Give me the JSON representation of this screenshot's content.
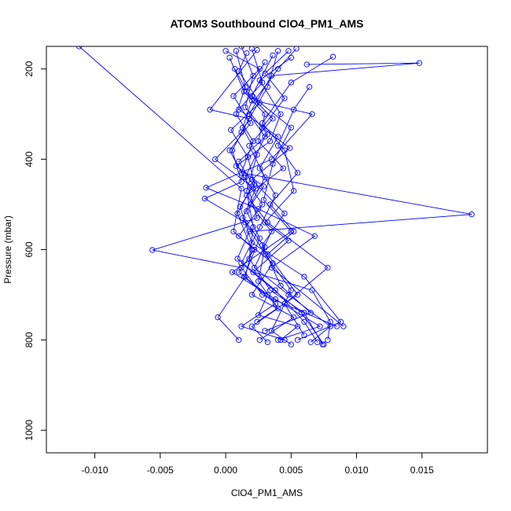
{
  "chart_data": {
    "type": "line",
    "title": "ATOM3 Southbound ClO4_PM1_AMS",
    "xlabel": "ClO4_PM1_AMS",
    "ylabel": "Pressure (mbar)",
    "xlim": [
      -0.0137,
      0.02
    ],
    "ylim": [
      1050,
      150
    ],
    "x_ticks": [
      -0.01,
      -0.005,
      0.0,
      0.005,
      0.01,
      0.015
    ],
    "x_tick_labels": [
      "-0.010",
      "-0.005",
      "0.000",
      "0.005",
      "0.010",
      "0.015"
    ],
    "y_ticks": [
      200,
      400,
      600,
      800,
      1000
    ],
    "y_tick_labels": [
      "200",
      "400",
      "600",
      "800",
      "1000"
    ],
    "y_reversed": true,
    "grid": false,
    "marker": "open-circle",
    "color": "#0000ff",
    "series": [
      {
        "points": [
          [
            -0.0112,
            150
          ],
          [
            0.0012,
            465
          ],
          [
            0.0006,
            560
          ],
          [
            0.0022,
            600
          ],
          [
            0.001,
            650
          ],
          [
            0.0032,
            700
          ],
          [
            0.0025,
            745
          ],
          [
            0.0055,
            770
          ],
          [
            0.0042,
            800
          ]
        ]
      },
      {
        "points": [
          [
            0.0008,
            160
          ],
          [
            0.0015,
            240
          ],
          [
            0.0008,
            300
          ],
          [
            0.0021,
            360
          ],
          [
            0.0012,
            430
          ],
          [
            0.0188,
            522
          ],
          [
            0.0018,
            560
          ],
          [
            0.0009,
            620
          ],
          [
            0.0038,
            690
          ],
          [
            0.006,
            760
          ],
          [
            0.007,
            805
          ]
        ]
      },
      {
        "points": [
          [
            0.0062,
            190
          ],
          [
            0.0148,
            187
          ],
          [
            0.0035,
            215
          ],
          [
            0.0018,
            300
          ],
          [
            0.003,
            350
          ],
          [
            0.0015,
            440
          ],
          [
            0.0024,
            530
          ],
          [
            -0.0056,
            601
          ],
          [
            0.0012,
            640
          ],
          [
            0.0028,
            700
          ],
          [
            0.0085,
            770
          ]
        ]
      },
      {
        "points": [
          [
            0.0082,
            173
          ],
          [
            0.005,
            230
          ],
          [
            0.0028,
            320
          ],
          [
            0.0045,
            380
          ],
          [
            0.0052,
            470
          ],
          [
            0.003,
            540
          ],
          [
            0.0048,
            580
          ],
          [
            0.0021,
            650
          ],
          [
            0.0066,
            690
          ],
          [
            0.008,
            760
          ],
          [
            0.0078,
            800
          ]
        ]
      },
      {
        "points": [
          [
            0.004,
            160
          ],
          [
            0.0032,
            240
          ],
          [
            0.0012,
            340
          ],
          [
            -0.0008,
            400
          ],
          [
            0.002,
            460
          ],
          [
            0.0009,
            520
          ],
          [
            0.002,
            600
          ],
          [
            0.0015,
            660
          ],
          [
            -0.0006,
            750
          ],
          [
            0.001,
            800
          ]
        ]
      },
      {
        "points": [
          [
            0.0054,
            155
          ],
          [
            0.004,
            200
          ],
          [
            0.0022,
            270
          ],
          [
            0.0066,
            300
          ],
          [
            0.0035,
            400
          ],
          [
            -0.0015,
            463
          ],
          [
            0.0025,
            510
          ],
          [
            0.0068,
            570
          ],
          [
            0.0035,
            640
          ],
          [
            0.009,
            770
          ]
        ]
      },
      {
        "points": [
          [
            0.0003,
            175
          ],
          [
            0.0014,
            250
          ],
          [
            0.003,
            300
          ],
          [
            0.0025,
            360
          ],
          [
            0.0044,
            420
          ],
          [
            0.0016,
            480
          ],
          [
            0.0032,
            540
          ],
          [
            0.0078,
            640
          ],
          [
            0.0045,
            720
          ],
          [
            0.006,
            790
          ]
        ]
      },
      {
        "points": [
          [
            0.0024,
            158
          ],
          [
            -0.0012,
            290
          ],
          [
            0.0018,
            310
          ],
          [
            0.0005,
            380
          ],
          [
            0.0012,
            450
          ],
          [
            -0.0016,
            487
          ],
          [
            0.0015,
            540
          ],
          [
            0.003,
            610
          ],
          [
            0.005,
            690
          ],
          [
            0.0035,
            780
          ],
          [
            0.005,
            810
          ]
        ]
      },
      {
        "points": [
          [
            0.0036,
            170
          ],
          [
            0.002,
            260
          ],
          [
            0.005,
            330
          ],
          [
            0.0036,
            410
          ],
          [
            0.0029,
            490
          ],
          [
            0.005,
            560
          ],
          [
            0.0005,
            650
          ],
          [
            0.0038,
            710
          ],
          [
            0.0072,
            770
          ],
          [
            0.004,
            800
          ]
        ]
      },
      {
        "points": [
          [
            0.002,
            155
          ],
          [
            0.0028,
            230
          ],
          [
            0.001,
            290
          ],
          [
            0.004,
            350
          ],
          [
            0.0026,
            420
          ],
          [
            0.0038,
            480
          ],
          [
            0.0026,
            550
          ],
          [
            0.0012,
            630
          ],
          [
            0.0058,
            740
          ],
          [
            0.0075,
            810
          ]
        ]
      },
      {
        "points": [
          [
            0.0016,
            165
          ],
          [
            0.001,
            205
          ],
          [
            0.0026,
            275
          ],
          [
            0.0004,
            335
          ],
          [
            0.0017,
            395
          ],
          [
            0.0022,
            455
          ],
          [
            0.0011,
            505
          ],
          [
            0.002,
            585
          ],
          [
            0.006,
            660
          ],
          [
            0.0088,
            760
          ],
          [
            0.0055,
            800
          ]
        ]
      },
      {
        "points": [
          [
            0.0048,
            160
          ],
          [
            0.003,
            210
          ],
          [
            0.0045,
            265
          ],
          [
            0.0028,
            330
          ],
          [
            0.0049,
            375
          ],
          [
            0.002,
            445
          ],
          [
            0.0045,
            520
          ],
          [
            0.0028,
            590
          ],
          [
            0.0042,
            680
          ],
          [
            0.0065,
            740
          ],
          [
            0.003,
            780
          ]
        ]
      },
      {
        "points": [
          [
            0.0012,
            150
          ],
          [
            0.0021,
            215
          ],
          [
            0.0015,
            285
          ],
          [
            0.0032,
            345
          ],
          [
            0.001,
            405
          ],
          [
            0.0023,
            465
          ],
          [
            0.0013,
            530
          ],
          [
            0.003,
            595
          ],
          [
            0.0025,
            670
          ],
          [
            0.004,
            730
          ],
          [
            0.002,
            770
          ],
          [
            0.0032,
            805
          ]
        ]
      },
      {
        "points": [
          [
            0.0064,
            240
          ],
          [
            0.0052,
            290
          ],
          [
            0.004,
            370
          ],
          [
            0.0055,
            430
          ],
          [
            0.0034,
            500
          ],
          [
            0.0052,
            560
          ],
          [
            0.0032,
            610
          ],
          [
            0.0055,
            700
          ],
          [
            0.0024,
            760
          ]
        ]
      },
      {
        "points": [
          [
            0.0007,
            200
          ],
          [
            0.002,
            270
          ],
          [
            0.0013,
            330
          ],
          [
            0.0024,
            390
          ],
          [
            0.0016,
            470
          ],
          [
            0.0021,
            550
          ],
          [
            0.0018,
            620
          ],
          [
            0.0034,
            690
          ],
          [
            0.006,
            740
          ],
          [
            0.0074,
            810
          ]
        ]
      },
      {
        "points": [
          [
            0.003,
            185
          ],
          [
            0.0016,
            250
          ],
          [
            0.0036,
            310
          ],
          [
            0.0018,
            370
          ],
          [
            0.003,
            440
          ],
          [
            0.0019,
            500
          ],
          [
            0.0035,
            560
          ],
          [
            0.0022,
            640
          ],
          [
            0.0048,
            700
          ],
          [
            0.008,
            770
          ],
          [
            0.0065,
            805
          ]
        ]
      },
      {
        "points": [
          [
            0.005,
            175
          ],
          [
            0.0026,
            225
          ],
          [
            0.0042,
            300
          ],
          [
            0.0034,
            360
          ],
          [
            0.0008,
            415
          ],
          [
            0.0029,
            460
          ],
          [
            0.0016,
            515
          ],
          [
            0.0026,
            575
          ],
          [
            0.0014,
            660
          ],
          [
            0.0038,
            720
          ],
          [
            0.0012,
            770
          ],
          [
            0.0045,
            800
          ]
        ]
      },
      {
        "points": [
          [
            0.0,
            160
          ],
          [
            0.0026,
            200
          ],
          [
            0.0006,
            260
          ],
          [
            0.0019,
            320
          ],
          [
            0.0003,
            380
          ],
          [
            0.0014,
            440
          ],
          [
            0.0028,
            500
          ],
          [
            0.001,
            570
          ],
          [
            0.0036,
            630
          ],
          [
            0.002,
            700
          ],
          [
            0.0052,
            750
          ],
          [
            0.0026,
            800
          ]
        ]
      }
    ]
  }
}
